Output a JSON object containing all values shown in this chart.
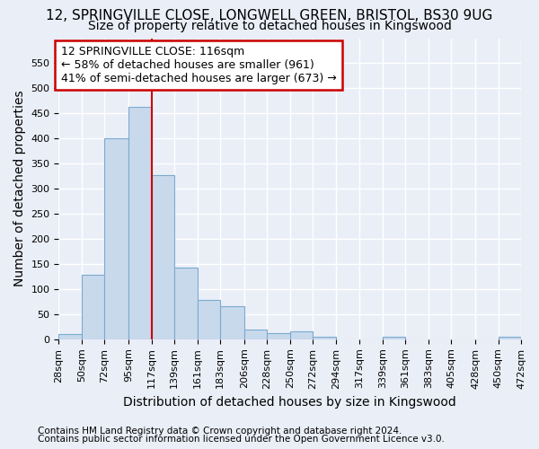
{
  "title_line1": "12, SPRINGVILLE CLOSE, LONGWELL GREEN, BRISTOL, BS30 9UG",
  "title_line2": "Size of property relative to detached houses in Kingswood",
  "xlabel": "Distribution of detached houses by size in Kingswood",
  "ylabel": "Number of detached properties",
  "bar_color": "#c9d9ec",
  "bar_edge_color": "#7aaad0",
  "annotation_box_text": "12 SPRINGVILLE CLOSE: 116sqm\n← 58% of detached houses are smaller (961)\n41% of semi-detached houses are larger (673) →",
  "annotation_box_color": "#ffffff",
  "annotation_box_edge_color": "#cc0000",
  "vline_x": 117,
  "vline_color": "#cc0000",
  "bin_edges": [
    28,
    50,
    72,
    95,
    117,
    139,
    161,
    183,
    206,
    228,
    250,
    272,
    294,
    317,
    339,
    361,
    383,
    405,
    428,
    450,
    472
  ],
  "bar_heights": [
    10,
    128,
    400,
    463,
    328,
    143,
    79,
    65,
    20,
    13,
    15,
    5,
    0,
    0,
    5,
    0,
    0,
    0,
    0,
    5
  ],
  "ylim": [
    0,
    600
  ],
  "yticks": [
    0,
    50,
    100,
    150,
    200,
    250,
    300,
    350,
    400,
    450,
    500,
    550
  ],
  "footnote1": "Contains HM Land Registry data © Crown copyright and database right 2024.",
  "footnote2": "Contains public sector information licensed under the Open Government Licence v3.0.",
  "background_color": "#eaeef7",
  "grid_color": "#ffffff",
  "title1_fontsize": 11,
  "title2_fontsize": 10,
  "axis_label_fontsize": 10,
  "tick_fontsize": 8,
  "footnote_fontsize": 7.5,
  "ann_fontsize": 9
}
